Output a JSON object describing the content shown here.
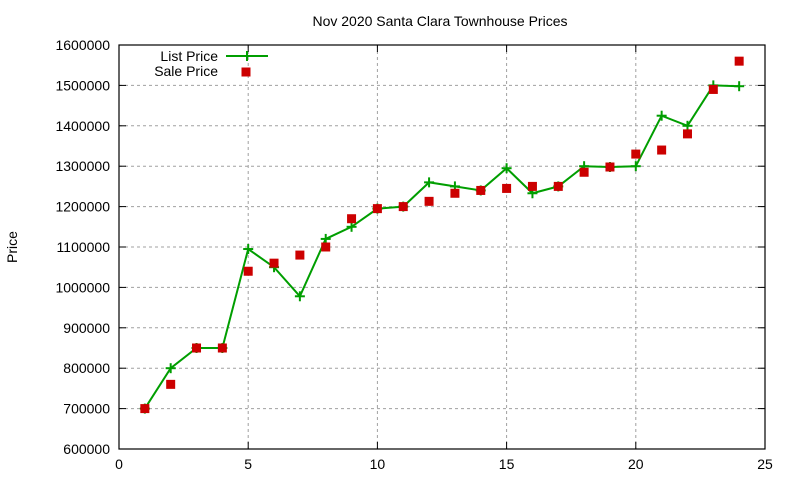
{
  "chart_data": {
    "type": "line",
    "title": "Nov 2020 Santa Clara Townhouse Prices",
    "xlabel": "",
    "ylabel": "Price",
    "xlim": [
      0,
      25
    ],
    "ylim": [
      600000,
      1600000
    ],
    "xticks": [
      0,
      5,
      10,
      15,
      20,
      25
    ],
    "yticks": [
      600000,
      700000,
      800000,
      900000,
      1000000,
      1100000,
      1200000,
      1300000,
      1400000,
      1500000,
      1600000
    ],
    "grid": true,
    "legend_position": "top-left",
    "x": [
      1,
      2,
      3,
      4,
      5,
      6,
      7,
      8,
      9,
      10,
      11,
      12,
      13,
      14,
      15,
      16,
      17,
      18,
      19,
      20,
      21,
      22,
      23,
      24
    ],
    "series": [
      {
        "name": "List Price",
        "style": "linespoints",
        "marker": "plus",
        "color": "#009e00",
        "values": [
          700000,
          800000,
          850000,
          850000,
          1095000,
          1050000,
          978000,
          1120000,
          1150000,
          1195000,
          1200000,
          1260000,
          1250000,
          1240000,
          1295000,
          1233000,
          1250000,
          1300000,
          1298000,
          1300000,
          1425000,
          1400000,
          1500000,
          1498000
        ]
      },
      {
        "name": "Sale Price",
        "style": "points",
        "marker": "square",
        "color": "#cc0000",
        "values": [
          700000,
          760000,
          850000,
          850000,
          1040000,
          1060000,
          1080000,
          1100000,
          1170000,
          1195000,
          1200000,
          1213000,
          1233000,
          1240000,
          1245000,
          1250000,
          1250000,
          1285000,
          1298000,
          1330000,
          1340000,
          1380000,
          1490000,
          1560000
        ]
      }
    ]
  },
  "legend": {
    "list_label": "List Price",
    "sale_label": "Sale Price"
  }
}
